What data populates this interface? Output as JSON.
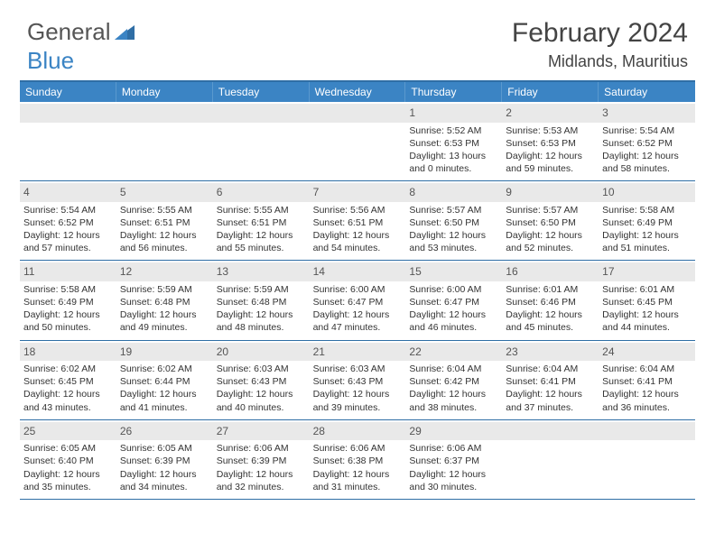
{
  "brand": {
    "part1": "General",
    "part2": "Blue"
  },
  "title": "February 2024",
  "location": "Midlands, Mauritius",
  "colors": {
    "header_bg": "#3b84c4",
    "border": "#2f6ea5",
    "daynum_bg": "#e9e9e9",
    "text": "#333333"
  },
  "weekdays": [
    "Sunday",
    "Monday",
    "Tuesday",
    "Wednesday",
    "Thursday",
    "Friday",
    "Saturday"
  ],
  "weeks": [
    [
      null,
      null,
      null,
      null,
      {
        "n": "1",
        "rise": "5:52 AM",
        "set": "6:53 PM",
        "day": "13 hours and 0 minutes."
      },
      {
        "n": "2",
        "rise": "5:53 AM",
        "set": "6:53 PM",
        "day": "12 hours and 59 minutes."
      },
      {
        "n": "3",
        "rise": "5:54 AM",
        "set": "6:52 PM",
        "day": "12 hours and 58 minutes."
      }
    ],
    [
      {
        "n": "4",
        "rise": "5:54 AM",
        "set": "6:52 PM",
        "day": "12 hours and 57 minutes."
      },
      {
        "n": "5",
        "rise": "5:55 AM",
        "set": "6:51 PM",
        "day": "12 hours and 56 minutes."
      },
      {
        "n": "6",
        "rise": "5:55 AM",
        "set": "6:51 PM",
        "day": "12 hours and 55 minutes."
      },
      {
        "n": "7",
        "rise": "5:56 AM",
        "set": "6:51 PM",
        "day": "12 hours and 54 minutes."
      },
      {
        "n": "8",
        "rise": "5:57 AM",
        "set": "6:50 PM",
        "day": "12 hours and 53 minutes."
      },
      {
        "n": "9",
        "rise": "5:57 AM",
        "set": "6:50 PM",
        "day": "12 hours and 52 minutes."
      },
      {
        "n": "10",
        "rise": "5:58 AM",
        "set": "6:49 PM",
        "day": "12 hours and 51 minutes."
      }
    ],
    [
      {
        "n": "11",
        "rise": "5:58 AM",
        "set": "6:49 PM",
        "day": "12 hours and 50 minutes."
      },
      {
        "n": "12",
        "rise": "5:59 AM",
        "set": "6:48 PM",
        "day": "12 hours and 49 minutes."
      },
      {
        "n": "13",
        "rise": "5:59 AM",
        "set": "6:48 PM",
        "day": "12 hours and 48 minutes."
      },
      {
        "n": "14",
        "rise": "6:00 AM",
        "set": "6:47 PM",
        "day": "12 hours and 47 minutes."
      },
      {
        "n": "15",
        "rise": "6:00 AM",
        "set": "6:47 PM",
        "day": "12 hours and 46 minutes."
      },
      {
        "n": "16",
        "rise": "6:01 AM",
        "set": "6:46 PM",
        "day": "12 hours and 45 minutes."
      },
      {
        "n": "17",
        "rise": "6:01 AM",
        "set": "6:45 PM",
        "day": "12 hours and 44 minutes."
      }
    ],
    [
      {
        "n": "18",
        "rise": "6:02 AM",
        "set": "6:45 PM",
        "day": "12 hours and 43 minutes."
      },
      {
        "n": "19",
        "rise": "6:02 AM",
        "set": "6:44 PM",
        "day": "12 hours and 41 minutes."
      },
      {
        "n": "20",
        "rise": "6:03 AM",
        "set": "6:43 PM",
        "day": "12 hours and 40 minutes."
      },
      {
        "n": "21",
        "rise": "6:03 AM",
        "set": "6:43 PM",
        "day": "12 hours and 39 minutes."
      },
      {
        "n": "22",
        "rise": "6:04 AM",
        "set": "6:42 PM",
        "day": "12 hours and 38 minutes."
      },
      {
        "n": "23",
        "rise": "6:04 AM",
        "set": "6:41 PM",
        "day": "12 hours and 37 minutes."
      },
      {
        "n": "24",
        "rise": "6:04 AM",
        "set": "6:41 PM",
        "day": "12 hours and 36 minutes."
      }
    ],
    [
      {
        "n": "25",
        "rise": "6:05 AM",
        "set": "6:40 PM",
        "day": "12 hours and 35 minutes."
      },
      {
        "n": "26",
        "rise": "6:05 AM",
        "set": "6:39 PM",
        "day": "12 hours and 34 minutes."
      },
      {
        "n": "27",
        "rise": "6:06 AM",
        "set": "6:39 PM",
        "day": "12 hours and 32 minutes."
      },
      {
        "n": "28",
        "rise": "6:06 AM",
        "set": "6:38 PM",
        "day": "12 hours and 31 minutes."
      },
      {
        "n": "29",
        "rise": "6:06 AM",
        "set": "6:37 PM",
        "day": "12 hours and 30 minutes."
      },
      null,
      null
    ]
  ],
  "labels": {
    "sunrise": "Sunrise: ",
    "sunset": "Sunset: ",
    "daylight": "Daylight: "
  }
}
